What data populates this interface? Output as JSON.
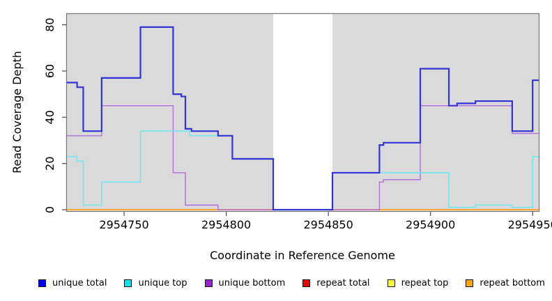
{
  "chart_data": {
    "type": "line",
    "subtype": "step-coverage-plot",
    "title": "",
    "xlabel": "Coordinate in Reference Genome",
    "ylabel": "Read Coverage Depth",
    "xlim": [
      2954722,
      2954953
    ],
    "ylim": [
      0,
      85
    ],
    "xticks": [
      2954750,
      2954800,
      2954850,
      2954900,
      2954950
    ],
    "yticks": [
      0,
      20,
      40,
      60,
      80
    ],
    "grid": false,
    "background_color": "#ffffff",
    "shaded_region_color": "#DADADA",
    "shaded_regions": [
      {
        "from": 2954722,
        "to": 2954823
      },
      {
        "from": 2954852,
        "to": 2954953
      }
    ],
    "series": [
      {
        "name": "repeat total",
        "color": "#DD2222",
        "lw": 1.2,
        "points": [
          [
            2954722,
            0
          ],
          [
            2954953,
            0
          ]
        ]
      },
      {
        "name": "repeat top",
        "color": "#F0F030",
        "lw": 1.2,
        "points": [
          [
            2954722,
            0
          ],
          [
            2954953,
            0
          ]
        ]
      },
      {
        "name": "repeat bottom",
        "color": "#FFA51E",
        "lw": 1.8,
        "points": [
          [
            2954722,
            0
          ],
          [
            2954953,
            0
          ]
        ]
      },
      {
        "name": "unique bottom",
        "color": "#B06FDC",
        "lw": 1.4,
        "points": [
          [
            2954722,
            32
          ],
          [
            2954739,
            45
          ],
          [
            2954774,
            16
          ],
          [
            2954780,
            2
          ],
          [
            2954796,
            0
          ],
          [
            2954875,
            12
          ],
          [
            2954877,
            13
          ],
          [
            2954895,
            45
          ],
          [
            2954940,
            33
          ],
          [
            2954953,
            33
          ]
        ]
      },
      {
        "name": "unique top",
        "color": "#72E5EE",
        "lw": 1.6,
        "points": [
          [
            2954722,
            23
          ],
          [
            2954727,
            21
          ],
          [
            2954730,
            2
          ],
          [
            2954739,
            12
          ],
          [
            2954758,
            34
          ],
          [
            2954782,
            32
          ],
          [
            2954803,
            22
          ],
          [
            2954823,
            0
          ],
          [
            2954852,
            16
          ],
          [
            2954909,
            1
          ],
          [
            2954922,
            2
          ],
          [
            2954940,
            1
          ],
          [
            2954950,
            23
          ],
          [
            2954953,
            23
          ]
        ]
      },
      {
        "name": "unique total",
        "color": "#3232D8",
        "lw": 2.2,
        "points": [
          [
            2954722,
            55
          ],
          [
            2954727,
            53
          ],
          [
            2954730,
            34
          ],
          [
            2954739,
            57
          ],
          [
            2954758,
            79
          ],
          [
            2954774,
            50
          ],
          [
            2954778,
            49
          ],
          [
            2954780,
            35
          ],
          [
            2954783,
            34
          ],
          [
            2954796,
            32
          ],
          [
            2954803,
            22
          ],
          [
            2954823,
            0
          ],
          [
            2954852,
            16
          ],
          [
            2954875,
            28
          ],
          [
            2954877,
            29
          ],
          [
            2954895,
            61
          ],
          [
            2954909,
            45
          ],
          [
            2954913,
            46
          ],
          [
            2954922,
            47
          ],
          [
            2954940,
            34
          ],
          [
            2954950,
            56
          ],
          [
            2954953,
            56
          ]
        ]
      }
    ],
    "legend": {
      "position": "bottom",
      "entries": [
        {
          "label": "unique total",
          "swatch_color": "#0000EE"
        },
        {
          "label": "unique top",
          "swatch_color": "#00E5EE"
        },
        {
          "label": "unique bottom",
          "swatch_color": "#9B1FD8"
        },
        {
          "label": "repeat total",
          "swatch_color": "#EE0000"
        },
        {
          "label": "repeat top",
          "swatch_color": "#FFFF33"
        },
        {
          "label": "repeat bottom",
          "swatch_color": "#FFA500"
        }
      ]
    },
    "axis_colors": {
      "box": "#757575",
      "tick": "#4d4d4d",
      "text": "#000000"
    }
  }
}
